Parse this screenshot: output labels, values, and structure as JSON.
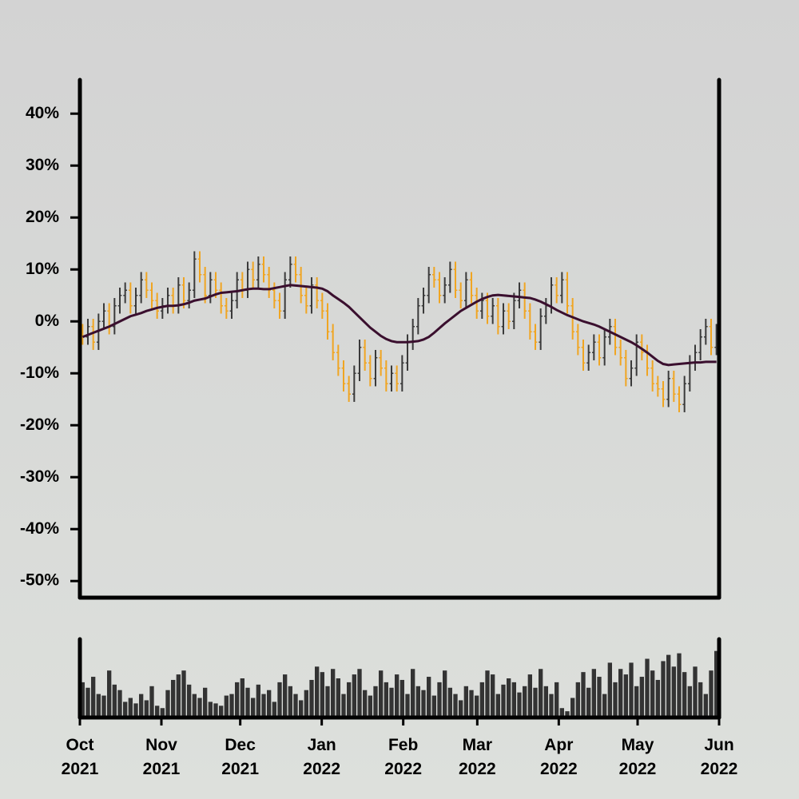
{
  "chart_data": {
    "type": "ohlc",
    "ylim": [
      -53.2,
      46.5
    ],
    "yticks": [
      {
        "value": 40,
        "label": "40%"
      },
      {
        "value": 30,
        "label": "30%"
      },
      {
        "value": 20,
        "label": "20%"
      },
      {
        "value": 10,
        "label": "10%"
      },
      {
        "value": 0,
        "label": "0%"
      },
      {
        "value": -10,
        "label": "-10%"
      },
      {
        "value": -20,
        "label": "-20%"
      },
      {
        "value": -30,
        "label": "-30%"
      },
      {
        "value": -40,
        "label": "-40%"
      },
      {
        "value": -50,
        "label": "-50%"
      }
    ],
    "xlim": [
      0,
      120
    ],
    "xticks": [
      {
        "value": 0,
        "label": "Oct 2021"
      },
      {
        "value": 15.3,
        "label": "Nov 2021"
      },
      {
        "value": 30.1,
        "label": "Dec 2021"
      },
      {
        "value": 45.4,
        "label": "Jan 2022"
      },
      {
        "value": 60.7,
        "label": "Feb 2022"
      },
      {
        "value": 74.6,
        "label": "Mar 2022"
      },
      {
        "value": 89.9,
        "label": "Apr 2022"
      },
      {
        "value": 104.7,
        "label": "May 2022"
      },
      {
        "value": 120,
        "label": "Jun 2022"
      }
    ],
    "up_color": "#3a3a3a",
    "down_color": "#f0a522",
    "open": [
      -2,
      -3,
      -1,
      -4,
      0,
      2,
      -1,
      3,
      5,
      6,
      3,
      5,
      8,
      6,
      4,
      2,
      3,
      5,
      3,
      7,
      4,
      6,
      12,
      9,
      5,
      8,
      6,
      3,
      2,
      4,
      8,
      6,
      10,
      8,
      11,
      9,
      6,
      4,
      2,
      8,
      11,
      9,
      5,
      3,
      7,
      4,
      2,
      -2,
      -6,
      -9,
      -12,
      -14,
      -10,
      -5,
      -8,
      -11,
      -7,
      -9,
      -12,
      -10,
      -12,
      -8,
      -4,
      -1,
      3,
      5,
      9,
      8,
      5,
      7,
      10,
      6,
      4,
      8,
      5,
      2,
      4,
      1,
      3,
      -1,
      2,
      0,
      4,
      6,
      2,
      -2,
      -4,
      1,
      3,
      7,
      5,
      8,
      3,
      -2,
      -5,
      -8,
      -6,
      -4,
      -7,
      -3,
      -1,
      -5,
      -7,
      -11,
      -9,
      -4,
      -6,
      -9,
      -12,
      -13,
      -15,
      -11,
      -14,
      -16,
      -12,
      -8,
      -6,
      -3,
      -1,
      -5
    ],
    "high": [
      -0.5,
      0.5,
      0.5,
      1.5,
      3.5,
      3.5,
      4.5,
      6.5,
      7.5,
      7.5,
      6.5,
      9.5,
      9.5,
      7.5,
      5.5,
      4.5,
      6.5,
      6.5,
      8.5,
      8.5,
      7.5,
      13.5,
      13.5,
      10.5,
      9.5,
      9.5,
      7.5,
      4.5,
      5.5,
      9.5,
      9.5,
      11.5,
      11.5,
      12.5,
      12.5,
      10.5,
      7.5,
      5.5,
      9.5,
      12.5,
      12.5,
      10.5,
      6.5,
      8.5,
      8.5,
      5.5,
      3.5,
      -0.5,
      -4.5,
      -7.5,
      -10.5,
      -8.5,
      -3.5,
      -3.5,
      -6.5,
      -5.5,
      -5.5,
      -7.5,
      -8.5,
      -8.5,
      -6.5,
      -2.5,
      0.5,
      4.5,
      6.5,
      10.5,
      10.5,
      9.5,
      8.5,
      11.5,
      11.5,
      7.5,
      9.5,
      9.5,
      6.5,
      5.5,
      5.5,
      4.5,
      4.5,
      3.5,
      3.5,
      5.5,
      7.5,
      7.5,
      3.5,
      -0.5,
      2.5,
      4.5,
      8.5,
      8.5,
      9.5,
      9.5,
      4.5,
      -0.5,
      -3.5,
      -4.5,
      -2.5,
      -2.5,
      -1.5,
      0.5,
      0.5,
      -3.5,
      -5.5,
      -7.5,
      -2.5,
      -2.5,
      -4.5,
      -7.5,
      -10.5,
      -11.5,
      -9.5,
      -9.5,
      -12.5,
      -10.5,
      -6.5,
      -4.5,
      -1.5,
      0.5,
      0.5,
      -0.5
    ],
    "low": [
      -4.5,
      -4.5,
      -5.5,
      -5.5,
      -1.5,
      -2.5,
      -2.5,
      1.5,
      3.5,
      1.5,
      1.5,
      3.5,
      4.5,
      2.5,
      0.5,
      0.5,
      1.5,
      1.5,
      1.5,
      2.5,
      2.5,
      4.5,
      7.5,
      3.5,
      3.5,
      4.5,
      1.5,
      0.5,
      0.5,
      2.5,
      4.5,
      4.5,
      6.5,
      6.5,
      7.5,
      4.5,
      2.5,
      0.5,
      0.5,
      6.5,
      7.5,
      3.5,
      1.5,
      1.5,
      2.5,
      0.5,
      -3.5,
      -7.5,
      -10.5,
      -13.5,
      -15.5,
      -15.5,
      -11.5,
      -9.5,
      -12.5,
      -12.5,
      -10.5,
      -13.5,
      -13.5,
      -13.5,
      -13.5,
      -9.5,
      -5.5,
      -2.5,
      1.5,
      3.5,
      6.5,
      3.5,
      3.5,
      5.5,
      4.5,
      2.5,
      2.5,
      3.5,
      0.5,
      0.5,
      -0.5,
      -0.5,
      -2.5,
      -2.5,
      -1.5,
      -1.5,
      2.5,
      0.5,
      -3.5,
      -5.5,
      -5.5,
      -0.5,
      1.5,
      3.5,
      3.5,
      1.5,
      -3.5,
      -6.5,
      -9.5,
      -9.5,
      -7.5,
      -8.5,
      -8.5,
      -4.5,
      -6.5,
      -8.5,
      -12.5,
      -12.5,
      -10.5,
      -7.5,
      -10.5,
      -13.5,
      -14.5,
      -16.5,
      -16.5,
      -15.5,
      -17.5,
      -17.5,
      -13.5,
      -9.5,
      -7.5,
      -4.5,
      -6.5,
      -6.5
    ],
    "close": [
      -3,
      -1,
      -4,
      0,
      2,
      -1,
      3,
      5,
      6,
      3,
      5,
      8,
      6,
      4,
      2,
      3,
      5,
      3,
      7,
      4,
      6,
      12,
      9,
      5,
      8,
      6,
      3,
      2,
      4,
      8,
      6,
      10,
      8,
      11,
      9,
      6,
      4,
      2,
      8,
      11,
      9,
      5,
      3,
      7,
      4,
      2,
      -2,
      -6,
      -9,
      -12,
      -14,
      -10,
      -5,
      -8,
      -11,
      -7,
      -9,
      -12,
      -10,
      -12,
      -8,
      -4,
      -1,
      3,
      5,
      9,
      8,
      5,
      7,
      10,
      6,
      4,
      8,
      5,
      2,
      4,
      1,
      3,
      -1,
      2,
      0,
      4,
      6,
      2,
      -2,
      -4,
      1,
      3,
      7,
      5,
      8,
      3,
      -2,
      -5,
      -8,
      -6,
      -4,
      -7,
      -3,
      -1,
      -5,
      -7,
      -11,
      -9,
      -4,
      -6,
      -9,
      -12,
      -13,
      -15,
      -11,
      -14,
      -16,
      -12,
      -8,
      -6,
      -3,
      -1,
      -5,
      -2
    ],
    "moving_average": {
      "color": "#3a0f2e",
      "values": [
        -3,
        -2.6,
        -2.2,
        -1.8,
        -1.4,
        -1,
        -0.5,
        0,
        0.5,
        1,
        1.3,
        1.6,
        2,
        2.3,
        2.6,
        2.8,
        3,
        3,
        3.1,
        3.3,
        3.6,
        4,
        4.2,
        4.4,
        4.8,
        5.2,
        5.5,
        5.6,
        5.7,
        5.8,
        6,
        6.2,
        6.3,
        6.3,
        6.2,
        6.2,
        6.4,
        6.6,
        6.8,
        7,
        6.9,
        6.8,
        6.7,
        6.6,
        6.5,
        6.3,
        5.8,
        5,
        4.3,
        3.6,
        2.8,
        1.8,
        0.8,
        -0.2,
        -1.2,
        -2,
        -2.8,
        -3.4,
        -3.8,
        -4,
        -4,
        -4,
        -3.9,
        -3.8,
        -3.5,
        -3,
        -2.2,
        -1.3,
        -0.4,
        0.4,
        1.2,
        2,
        2.6,
        3.2,
        3.8,
        4.3,
        4.7,
        5,
        5.1,
        5,
        4.9,
        4.8,
        4.7,
        4.6,
        4.5,
        4.2,
        3.8,
        3.3,
        2.8,
        2.2,
        1.7,
        1.2,
        0.8,
        0.4,
        0,
        -0.3,
        -0.6,
        -1,
        -1.5,
        -2,
        -2.5,
        -3,
        -3.5,
        -4,
        -4.6,
        -5.3,
        -6,
        -6.8,
        -7.6,
        -8.2,
        -8.4,
        -8.3,
        -8.2,
        -8.1,
        -8,
        -7.9,
        -7.9,
        -7.8,
        -7.8,
        -7.8
      ]
    },
    "volume": {
      "color": "#333333",
      "ylim": [
        0,
        100
      ],
      "values": [
        45,
        38,
        52,
        30,
        28,
        60,
        42,
        35,
        20,
        25,
        18,
        30,
        22,
        40,
        15,
        12,
        35,
        48,
        55,
        60,
        42,
        30,
        25,
        38,
        20,
        18,
        15,
        28,
        30,
        45,
        50,
        38,
        25,
        42,
        30,
        35,
        20,
        45,
        55,
        40,
        30,
        22,
        35,
        48,
        65,
        58,
        40,
        62,
        50,
        30,
        45,
        55,
        62,
        35,
        28,
        40,
        60,
        45,
        38,
        55,
        48,
        30,
        62,
        40,
        35,
        52,
        28,
        45,
        60,
        38,
        30,
        22,
        40,
        35,
        28,
        45,
        60,
        55,
        30,
        42,
        50,
        45,
        32,
        40,
        55,
        38,
        62,
        40,
        30,
        45,
        12,
        8,
        25,
        45,
        58,
        38,
        62,
        52,
        30,
        70,
        45,
        62,
        55,
        70,
        40,
        52,
        75,
        60,
        48,
        72,
        80,
        65,
        82,
        58,
        40,
        65,
        45,
        30,
        60,
        85
      ]
    }
  }
}
